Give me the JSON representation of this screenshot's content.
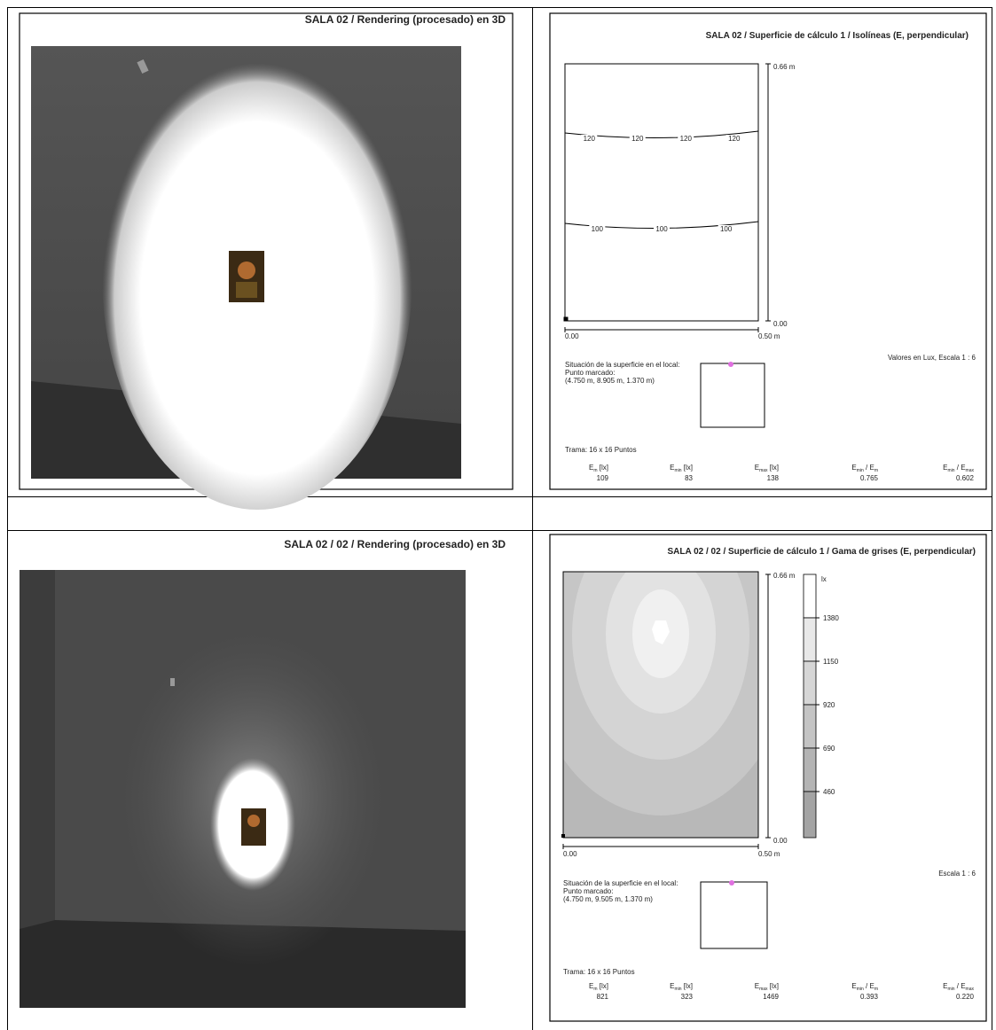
{
  "top_left": {
    "title": "SALA 02 / Rendering (procesado) en 3D"
  },
  "top_right": {
    "title": "SALA 02 / Superficie de cálculo 1 / Isolíneas (E, perpendicular)",
    "scale_y_top": "0.66 m",
    "scale_y_bottom": "0.00",
    "scale_x_left": "0.00",
    "scale_x_right": "0.50 m",
    "isoline_labels": [
      [
        "120",
        "120",
        "120",
        "120"
      ],
      [
        "100",
        "100",
        "100"
      ]
    ],
    "note": "Valores en Lux, Escala 1 : 6",
    "location": [
      "Situación de la superficie en el local:",
      "Punto marcado:",
      "(4.750 m, 8.905 m, 1.370 m)"
    ],
    "grid": "Trama: 16 x 16 Puntos",
    "stats": [
      {
        "label": [
          "E",
          "m",
          " [lx]"
        ],
        "value": "109"
      },
      {
        "label": [
          "E",
          "min",
          " [lx]"
        ],
        "value": "83"
      },
      {
        "label": [
          "E",
          "max",
          " [lx]"
        ],
        "value": "138"
      },
      {
        "label": [
          "E",
          "min",
          " / E",
          "m"
        ],
        "value": "0.765"
      },
      {
        "label": [
          "E",
          "min",
          " / E",
          "max"
        ],
        "value": "0.602"
      }
    ]
  },
  "bottom_left": {
    "title": "SALA 02 / 02 / Rendering (procesado) en 3D"
  },
  "bottom_right": {
    "title": "SALA 02 / 02 / Superficie de cálculo 1 / Gama de grises (E, perpendicular)",
    "scale_y_top": "0.66 m",
    "scale_y_bottom": "0.00",
    "scale_x_left": "0.00",
    "scale_x_right": "0.50 m",
    "legend_unit": "lx",
    "legend_labels": [
      "1380",
      "1150",
      "920",
      "690",
      "460"
    ],
    "note": "Escala 1 : 6",
    "location": [
      "Situación de la superficie en el local:",
      "Punto marcado:",
      "(4.750 m, 9.505 m, 1.370 m)"
    ],
    "grid": "Trama: 16 x 16 Puntos",
    "stats": [
      {
        "label": [
          "E",
          "m",
          " [lx]"
        ],
        "value": "821"
      },
      {
        "label": [
          "E",
          "min",
          " [lx]"
        ],
        "value": "323"
      },
      {
        "label": [
          "E",
          "max",
          " [lx]"
        ],
        "value": "1469"
      },
      {
        "label": [
          "E",
          "min",
          " / E",
          "m"
        ],
        "value": "0.393"
      },
      {
        "label": [
          "E",
          "min",
          " / E",
          "max"
        ],
        "value": "0.220"
      }
    ]
  }
}
